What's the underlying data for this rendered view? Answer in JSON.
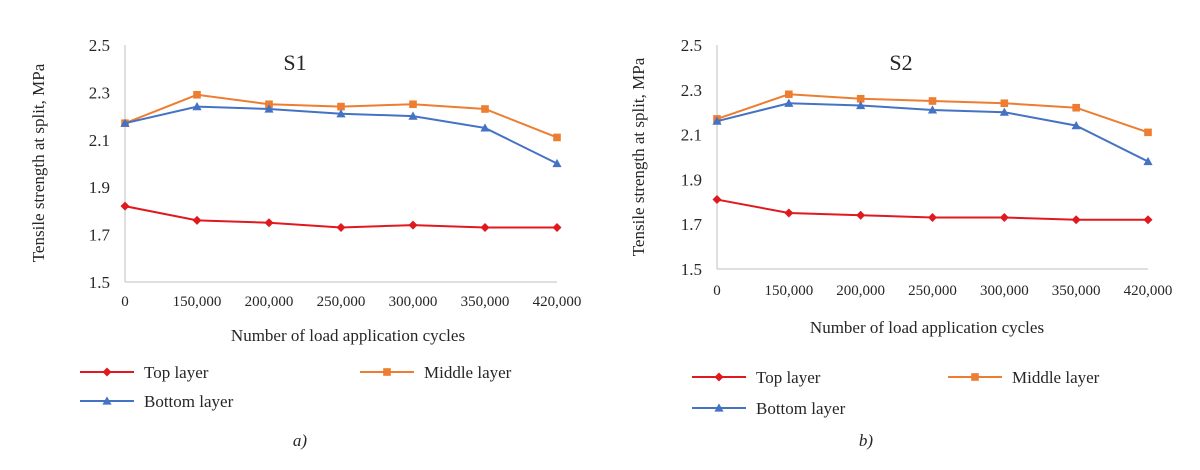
{
  "colors": {
    "top": "#e0191f",
    "middle": "#ed7d31",
    "bottom": "#4472c4",
    "axis": "#bfbfbf"
  },
  "chart_data": [
    {
      "type": "line",
      "title": "S1",
      "panel_label": "a)",
      "xlabel": "Number of load application cycles",
      "ylabel": "Tensile strength at split, MPa",
      "categories": [
        "0",
        "150,000",
        "200,000",
        "250,000",
        "300,000",
        "350,000",
        "420,000"
      ],
      "ylim": [
        1.5,
        2.5
      ],
      "yticks": [
        "1.5",
        "1.7",
        "1.9",
        "2.1",
        "2.3",
        "2.5"
      ],
      "grid": false,
      "legend": "bottom",
      "series": [
        {
          "name": "Top layer",
          "marker": "diamond",
          "values": [
            1.82,
            1.76,
            1.75,
            1.73,
            1.74,
            1.73,
            1.73
          ]
        },
        {
          "name": "Middle layer",
          "marker": "square",
          "values": [
            2.17,
            2.29,
            2.25,
            2.24,
            2.25,
            2.23,
            2.11
          ]
        },
        {
          "name": "Bottom layer",
          "marker": "triangle",
          "values": [
            2.17,
            2.24,
            2.23,
            2.21,
            2.2,
            2.15,
            2.0
          ]
        }
      ]
    },
    {
      "type": "line",
      "title": "S2",
      "panel_label": "b)",
      "xlabel": "Number of load application cycles",
      "ylabel": "Tensile strength at split, MPa",
      "categories": [
        "0",
        "150,000",
        "200,000",
        "250,000",
        "300,000",
        "350,000",
        "420,000"
      ],
      "ylim": [
        1.5,
        2.5
      ],
      "yticks": [
        "1.5",
        "1.7",
        "1.9",
        "2.1",
        "2.3",
        "2.5"
      ],
      "grid": false,
      "legend": "bottom",
      "series": [
        {
          "name": "Top layer",
          "marker": "diamond",
          "values": [
            1.81,
            1.75,
            1.74,
            1.73,
            1.73,
            1.72,
            1.72
          ]
        },
        {
          "name": "Middle layer",
          "marker": "square",
          "values": [
            2.17,
            2.28,
            2.26,
            2.25,
            2.24,
            2.22,
            2.11
          ]
        },
        {
          "name": "Bottom layer",
          "marker": "triangle",
          "values": [
            2.16,
            2.24,
            2.23,
            2.21,
            2.2,
            2.14,
            1.98
          ]
        }
      ]
    }
  ]
}
